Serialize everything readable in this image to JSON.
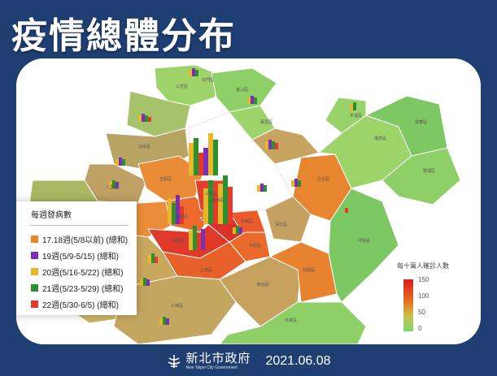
{
  "title": "疫情總體分布",
  "legend": {
    "title": "每週發病數",
    "items": [
      {
        "label": "17.18週(5/8以前) (總和)",
        "color": "#e8862a"
      },
      {
        "label": "19週(5/9-5/15) (總和)",
        "color": "#7b2fb3"
      },
      {
        "label": "20週(5/16-5/22) (總和)",
        "color": "#e6b72a"
      },
      {
        "label": "21週(5/23-5/29) (總和)",
        "color": "#2f8f2f"
      },
      {
        "label": "22週(5/30-6/5) (總和)",
        "color": "#e23b2a"
      }
    ]
  },
  "scale": {
    "title": "每十萬人確診人數",
    "ticks": [
      "150",
      "100",
      "50",
      "0"
    ]
  },
  "districts": [
    "三芝區",
    "石門區",
    "金山區",
    "萬里區",
    "淡水區",
    "八里區",
    "林口區",
    "五股區",
    "泰山區",
    "新莊區",
    "蘆洲區",
    "三重區",
    "板橋區",
    "樹林區",
    "鶯歌區",
    "三峽區",
    "土城區",
    "中和區",
    "永和區",
    "新店區",
    "深坑區",
    "石碇區",
    "汐止區",
    "瑞芳區",
    "平溪區",
    "雙溪區",
    "貢寮區",
    "坪林區",
    "烏來區"
  ],
  "footer": {
    "logo_text": "新北市政府",
    "logo_subtext": "New Taipei City Government",
    "date": "2021.06.08"
  }
}
